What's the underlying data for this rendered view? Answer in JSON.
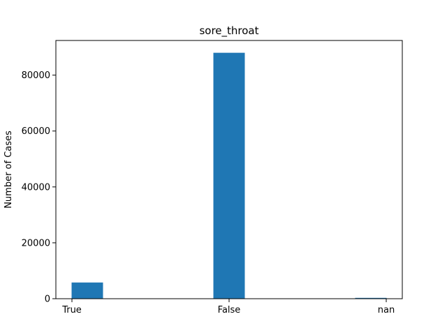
{
  "chart_data": {
    "type": "bar",
    "title": "sore_throat",
    "xlabel": "",
    "ylabel": "Number of Cases",
    "categories": [
      "True",
      "False",
      "nan"
    ],
    "values": [
      5800,
      88000,
      300
    ],
    "ylim": [
      0,
      92400
    ],
    "yticks": [
      0,
      20000,
      40000,
      60000,
      80000
    ],
    "grid": false,
    "legend": "none",
    "colors": {
      "bar": "#1f77b4",
      "axis": "#000000",
      "background": "#ffffff"
    }
  }
}
